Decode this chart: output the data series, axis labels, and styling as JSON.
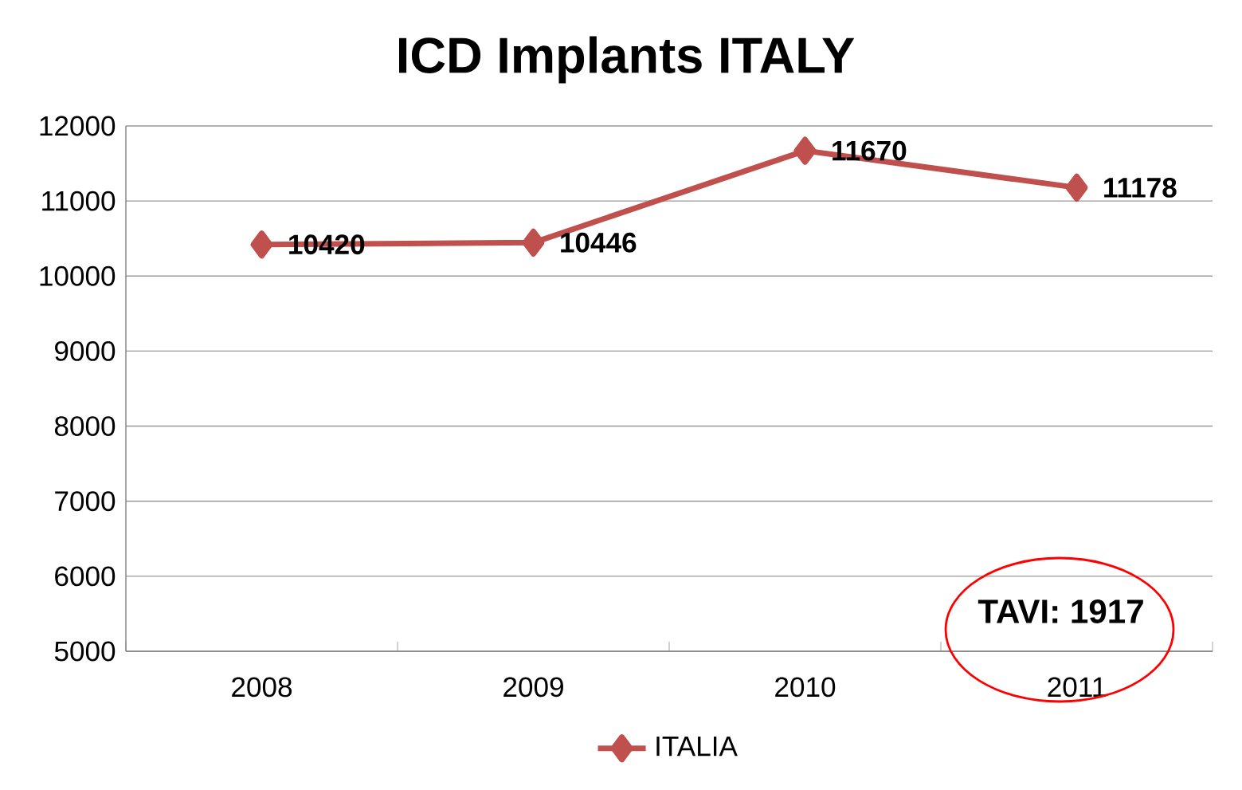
{
  "chart_data": {
    "type": "line",
    "title": "ICD Implants ITALY",
    "categories": [
      "2008",
      "2009",
      "2010",
      "2011"
    ],
    "series": [
      {
        "name": "ITALIA",
        "color": "#c0504d",
        "values": [
          10420,
          10446,
          11670,
          11178
        ]
      }
    ],
    "ylim": [
      5000,
      12000
    ],
    "yticks": [
      5000,
      6000,
      7000,
      8000,
      9000,
      10000,
      11000,
      12000
    ],
    "grid": "y",
    "legend": "bottom",
    "marker": "diamond",
    "data_labels": true,
    "annotations": [
      "TAVI: 1917"
    ]
  }
}
